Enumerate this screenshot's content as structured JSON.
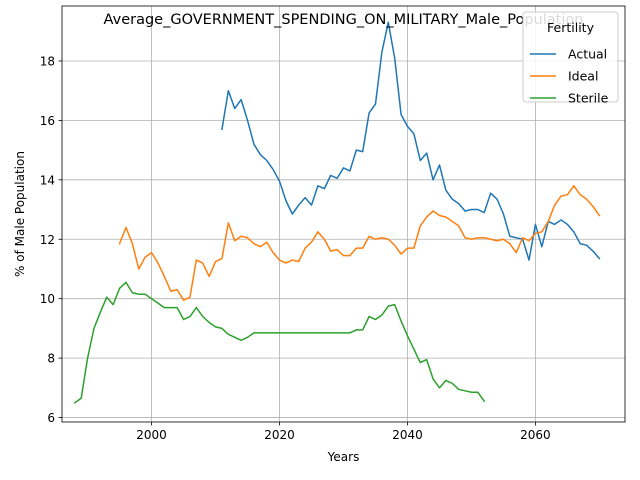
{
  "chart_data": {
    "type": "line",
    "title": "Average_GOVERNMENT_SPENDING_ON_MILITARY_Male_Population",
    "xlabel": "Years",
    "ylabel": "% of Male Population",
    "xlim": [
      1986,
      2074
    ],
    "ylim": [
      5.85,
      19.85
    ],
    "xticks": [
      2000,
      2020,
      2040,
      2060
    ],
    "yticks": [
      6,
      8,
      10,
      12,
      14,
      16,
      18
    ],
    "grid": true,
    "legend": {
      "title": "Fertility",
      "position": "top-right"
    },
    "series": [
      {
        "name": "Actual",
        "color": "#1f77b4",
        "x": [
          2011,
          2012,
          2013,
          2014,
          2015,
          2016,
          2017,
          2018,
          2019,
          2020,
          2021,
          2022,
          2023,
          2024,
          2025,
          2026,
          2027,
          2028,
          2029,
          2030,
          2031,
          2032,
          2033,
          2034,
          2035,
          2036,
          2037,
          2038,
          2039,
          2040,
          2041,
          2042,
          2043,
          2044,
          2045,
          2046,
          2047,
          2048,
          2049,
          2050,
          2051,
          2052,
          2053,
          2054,
          2055,
          2056,
          2057,
          2058,
          2059,
          2060,
          2061,
          2062,
          2063,
          2064,
          2065,
          2066,
          2067,
          2068,
          2069,
          2070
        ],
        "y": [
          15.7,
          17.0,
          16.4,
          16.7,
          16.0,
          15.2,
          14.85,
          14.65,
          14.35,
          13.95,
          13.3,
          12.85,
          13.15,
          13.4,
          13.15,
          13.8,
          13.7,
          14.15,
          14.05,
          14.4,
          14.3,
          15.0,
          14.95,
          16.25,
          16.55,
          18.3,
          19.3,
          18.1,
          16.2,
          15.8,
          15.55,
          14.65,
          14.9,
          14.0,
          14.5,
          13.65,
          13.35,
          13.2,
          12.95,
          13.0,
          13.0,
          12.9,
          13.55,
          13.35,
          12.85,
          12.1,
          12.05,
          12.0,
          11.3,
          12.5,
          11.75,
          12.6,
          12.5,
          12.65,
          12.5,
          12.25,
          11.85,
          11.8,
          11.6,
          11.35
        ]
      },
      {
        "name": "Ideal",
        "color": "#ff7f0e",
        "x": [
          1995,
          1996,
          1997,
          1998,
          1999,
          2000,
          2001,
          2002,
          2003,
          2004,
          2005,
          2006,
          2007,
          2008,
          2009,
          2010,
          2011,
          2012,
          2013,
          2014,
          2015,
          2016,
          2017,
          2018,
          2019,
          2020,
          2021,
          2022,
          2023,
          2024,
          2025,
          2026,
          2027,
          2028,
          2029,
          2030,
          2031,
          2032,
          2033,
          2034,
          2035,
          2036,
          2037,
          2038,
          2039,
          2040,
          2041,
          2042,
          2043,
          2044,
          2045,
          2046,
          2047,
          2048,
          2049,
          2050,
          2051,
          2052,
          2053,
          2054,
          2055,
          2056,
          2057,
          2058,
          2059,
          2060,
          2061,
          2062,
          2063,
          2064,
          2065,
          2066,
          2067,
          2068,
          2069,
          2070
        ],
        "y": [
          11.85,
          12.4,
          11.85,
          11.0,
          11.4,
          11.55,
          11.2,
          10.75,
          10.25,
          10.3,
          9.95,
          10.05,
          11.3,
          11.2,
          10.75,
          11.25,
          11.35,
          12.55,
          11.95,
          12.1,
          12.05,
          11.85,
          11.75,
          11.9,
          11.55,
          11.3,
          11.2,
          11.3,
          11.25,
          11.7,
          11.9,
          12.25,
          12.0,
          11.6,
          11.65,
          11.45,
          11.45,
          11.7,
          11.7,
          12.1,
          12.0,
          12.05,
          12.0,
          11.8,
          11.5,
          11.7,
          11.7,
          12.45,
          12.75,
          12.95,
          12.8,
          12.75,
          12.6,
          12.45,
          12.05,
          12.0,
          12.05,
          12.05,
          12.0,
          11.95,
          12.0,
          11.85,
          11.55,
          12.05,
          11.95,
          12.2,
          12.25,
          12.6,
          13.15,
          13.45,
          13.5,
          13.8,
          13.5,
          13.35,
          13.1,
          12.8
        ]
      },
      {
        "name": "Sterile",
        "color": "#2ca02c",
        "x": [
          1988,
          1989,
          1990,
          1991,
          1992,
          1993,
          1994,
          1995,
          1996,
          1997,
          1998,
          1999,
          2000,
          2001,
          2002,
          2003,
          2004,
          2005,
          2006,
          2007,
          2008,
          2009,
          2010,
          2011,
          2012,
          2013,
          2014,
          2015,
          2016,
          2017,
          2018,
          2019,
          2020,
          2021,
          2022,
          2023,
          2024,
          2025,
          2026,
          2027,
          2028,
          2029,
          2030,
          2031,
          2032,
          2033,
          2034,
          2035,
          2036,
          2037,
          2038,
          2039,
          2040,
          2041,
          2042,
          2043,
          2044,
          2045,
          2046,
          2047,
          2048,
          2049,
          2050,
          2051,
          2052
        ],
        "y": [
          6.5,
          6.65,
          8.0,
          9.0,
          9.55,
          10.05,
          9.8,
          10.35,
          10.55,
          10.2,
          10.15,
          10.15,
          10.0,
          9.85,
          9.7,
          9.7,
          9.7,
          9.3,
          9.4,
          9.7,
          9.4,
          9.2,
          9.05,
          9.0,
          8.8,
          8.7,
          8.6,
          8.7,
          8.85,
          8.85,
          8.85,
          8.85,
          8.85,
          8.85,
          8.85,
          8.85,
          8.85,
          8.85,
          8.85,
          8.85,
          8.85,
          8.85,
          8.85,
          8.85,
          8.95,
          8.95,
          9.4,
          9.3,
          9.45,
          9.75,
          9.8,
          9.25,
          8.75,
          8.3,
          7.85,
          7.95,
          7.3,
          7.0,
          7.25,
          7.15,
          6.95,
          6.9,
          6.85,
          6.85,
          6.55
        ]
      }
    ]
  }
}
